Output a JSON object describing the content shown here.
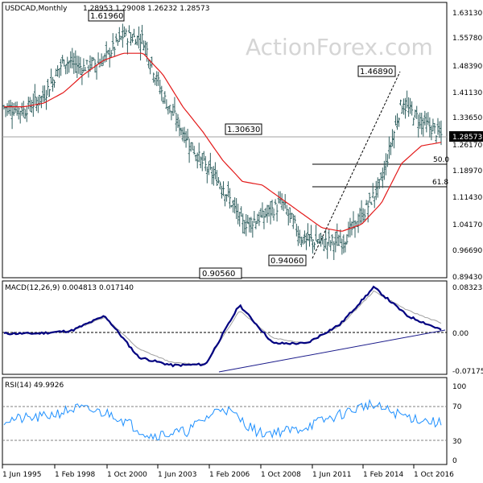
{
  "header": {
    "symbol": "USDCAD,Monthly",
    "ohlc": "1.28953 1.29008 1.26232 1.28573",
    "watermark": "ActionForex.com"
  },
  "macd": {
    "label": "MACD(12,26,9) 0.004813 0.017140",
    "ticks": [
      "0.083235",
      "0.00",
      "-0.071752"
    ]
  },
  "rsi": {
    "label": "RSI(14) 49.9926",
    "ticks": [
      "100",
      "70",
      "30",
      "0"
    ]
  },
  "price": {
    "ticks": [
      "1.63130",
      "1.55780",
      "1.48390",
      "1.41130",
      "1.33650",
      "1.26170",
      "1.18970",
      "1.11430",
      "1.04170",
      "0.96690",
      "0.89430"
    ],
    "current": "1.28573",
    "annotations": [
      "1.61960",
      "1.30630",
      "0.90560",
      "0.94060",
      "1.46890"
    ],
    "fib": [
      "50.0",
      "61.8"
    ]
  },
  "xaxis": {
    "ticks": [
      "1 Jun 1995",
      "1 Feb 1998",
      "1 Oct 2000",
      "1 Jun 2003",
      "1 Feb 2006",
      "1 Oct 2008",
      "1 Jun 2011",
      "1 Feb 2014",
      "1 Oct 2016"
    ]
  },
  "colors": {
    "bars": "#2f5f5f",
    "ma": "#e31a1a",
    "macd": "#000080",
    "signal": "#a0a0a0",
    "rsi": "#1e90ff"
  },
  "chart_data": [
    {
      "type": "line",
      "title": "USDCAD,Monthly",
      "x": [
        "1995",
        "1996",
        "1997",
        "1998",
        "1999",
        "2000",
        "2001",
        "2002",
        "2003",
        "2004",
        "2005",
        "2006",
        "2007",
        "2008",
        "2009",
        "2010",
        "2011",
        "2012",
        "2013",
        "2014",
        "2015",
        "2016",
        "2017"
      ],
      "series": [
        {
          "name": "close",
          "values": [
            1.37,
            1.36,
            1.4,
            1.5,
            1.48,
            1.5,
            1.57,
            1.56,
            1.4,
            1.3,
            1.21,
            1.15,
            1.04,
            1.06,
            1.1,
            1.0,
            0.99,
            0.99,
            1.06,
            1.16,
            1.38,
            1.33,
            1.29
          ]
        },
        {
          "name": "ma",
          "values": [
            1.37,
            1.37,
            1.38,
            1.41,
            1.46,
            1.5,
            1.52,
            1.52,
            1.46,
            1.37,
            1.3,
            1.22,
            1.16,
            1.15,
            1.11,
            1.07,
            1.03,
            1.02,
            1.04,
            1.1,
            1.21,
            1.26,
            1.27
          ]
        }
      ],
      "annotations": [
        {
          "label": "1.61960",
          "x": "2002",
          "y": 1.6196
        },
        {
          "label": "1.30630",
          "x": "2007",
          "y": 1.3063
        },
        {
          "label": "0.90560",
          "x": "2007",
          "y": 0.9056
        },
        {
          "label": "0.94060",
          "x": "2011",
          "y": 0.9406
        },
        {
          "label": "1.46890",
          "x": "2016",
          "y": 1.4689
        }
      ],
      "fib_levels": [
        {
          "label": "50.0",
          "y": 1.2047
        },
        {
          "label": "61.8",
          "y": 1.1473
        }
      ],
      "ylim": [
        0.8943,
        1.6313
      ]
    },
    {
      "type": "line",
      "title": "MACD(12,26,9)",
      "x": [
        "1995",
        "1997",
        "1999",
        "2001",
        "2003",
        "2004",
        "2006",
        "2008",
        "2009",
        "2011",
        "2013",
        "2015",
        "2016",
        "2017"
      ],
      "series": [
        {
          "name": "MACD",
          "values": [
            -0.002,
            -0.002,
            0.003,
            0.03,
            -0.045,
            -0.06,
            -0.058,
            0.05,
            -0.02,
            -0.02,
            0.015,
            0.082,
            0.03,
            0.0048
          ]
        },
        {
          "name": "Signal",
          "values": [
            -0.002,
            -0.002,
            0.003,
            0.028,
            -0.03,
            -0.055,
            -0.058,
            0.04,
            -0.01,
            -0.02,
            0.012,
            0.075,
            0.04,
            0.01714
          ]
        }
      ],
      "ylim": [
        -0.071752,
        0.083235
      ]
    },
    {
      "type": "line",
      "title": "RSI(14)",
      "x": [
        "1995",
        "1997",
        "1999",
        "2001",
        "2003",
        "2005",
        "2007",
        "2009",
        "2011",
        "2013",
        "2015",
        "2016",
        "2017"
      ],
      "series": [
        {
          "name": "RSI(14)",
          "values": [
            55,
            58,
            70,
            62,
            35,
            40,
            72,
            38,
            42,
            58,
            75,
            60,
            50
          ]
        }
      ],
      "ylim": [
        0,
        100
      ]
    }
  ]
}
